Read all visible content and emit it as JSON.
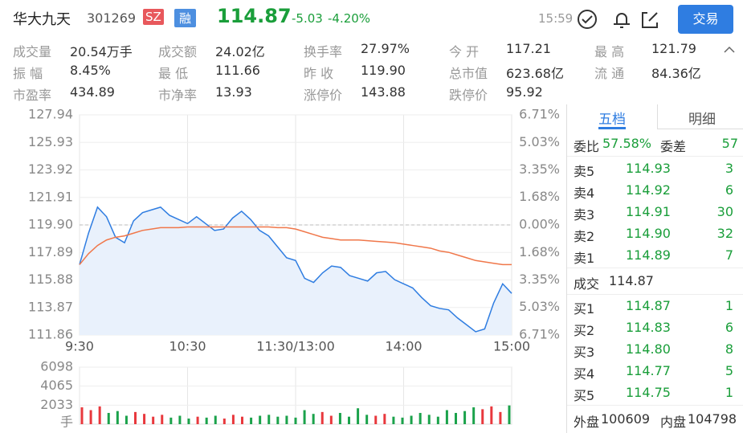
{
  "header": {
    "name": "华大九天",
    "code": "301269",
    "market": "SZ",
    "margin": "融",
    "price": "114.87",
    "change": "-5.03",
    "change_pct": "-4.20%",
    "time": "15:59",
    "trade_button": "交易"
  },
  "stats": [
    [
      {
        "label": "成交量",
        "value": "20.54万手"
      },
      {
        "label": "成交额",
        "value": "24.02亿"
      },
      {
        "label": "换手率",
        "value": "27.97%"
      },
      {
        "label": "今 开",
        "value": "117.21"
      },
      {
        "label": "最 高",
        "value": "121.79"
      }
    ],
    [
      {
        "label": "振 幅",
        "value": "8.45%"
      },
      {
        "label": "最 低",
        "value": "111.66"
      },
      {
        "label": "昨 收",
        "value": "119.90"
      },
      {
        "label": "总市值",
        "value": "623.68亿"
      },
      {
        "label": "流 通",
        "value": "84.36亿"
      }
    ],
    [
      {
        "label": "市盈率",
        "value": "434.89"
      },
      {
        "label": "市净率",
        "value": "13.93"
      },
      {
        "label": "涨停价",
        "value": "143.88"
      },
      {
        "label": "跌停价",
        "value": "95.92"
      }
    ]
  ],
  "chart_data": [
    {
      "type": "line",
      "x_labels": [
        "9:30",
        "10:30",
        "11:30/13:00",
        "14:00",
        "15:00"
      ],
      "ylim": [
        111.86,
        127.94
      ],
      "yticks": [
        111.86,
        113.87,
        115.88,
        117.89,
        {
          "value": 119.9,
          "label": "119.90"
        },
        121.91,
        123.92,
        125.93,
        127.94
      ],
      "y2lim": [
        -6.71,
        6.71
      ],
      "y2ticks": [
        {
          "value": -6.71,
          "label": "6.71%"
        },
        {
          "value": -5.03,
          "label": "5.03%"
        },
        {
          "value": -3.35,
          "label": "3.35%"
        },
        {
          "value": -1.68,
          "label": "1.68%"
        },
        {
          "value": 0,
          "label": "0.00%"
        },
        {
          "value": 1.68,
          "label": "1.68%"
        },
        {
          "value": 3.35,
          "label": "3.35%"
        },
        {
          "value": 5.03,
          "label": "5.03%"
        },
        {
          "value": 6.71,
          "label": "6.71%"
        }
      ],
      "grid": true,
      "series": [
        {
          "color": "#2f7de1",
          "values": [
            117.0,
            119.3,
            121.2,
            120.5,
            119.0,
            118.6,
            120.2,
            120.8,
            121.0,
            121.2,
            120.6,
            120.3,
            120.0,
            120.5,
            120.0,
            119.5,
            119.6,
            120.4,
            120.9,
            120.3,
            119.5,
            119.1,
            118.3,
            117.5,
            117.3,
            116.0,
            115.7,
            116.4,
            116.9,
            116.8,
            116.2,
            116.0,
            115.8,
            116.4,
            116.5,
            115.9,
            115.6,
            115.3,
            114.6,
            114.0,
            113.8,
            113.7,
            113.1,
            112.6,
            112.1,
            112.3,
            114.2,
            115.6,
            114.9
          ]
        },
        {
          "color": "#f0774a",
          "values": [
            117.0,
            117.8,
            118.4,
            118.8,
            119.0,
            119.1,
            119.3,
            119.5,
            119.6,
            119.7,
            119.7,
            119.7,
            119.75,
            119.75,
            119.75,
            119.75,
            119.75,
            119.75,
            119.75,
            119.75,
            119.75,
            119.75,
            119.7,
            119.7,
            119.6,
            119.4,
            119.2,
            119.0,
            118.9,
            118.8,
            118.8,
            118.8,
            118.75,
            118.7,
            118.65,
            118.6,
            118.5,
            118.4,
            118.3,
            118.2,
            118.0,
            117.9,
            117.7,
            117.5,
            117.3,
            117.2,
            117.1,
            117.0,
            117.0
          ]
        }
      ]
    },
    {
      "type": "bar",
      "ylim": [
        0,
        6098
      ],
      "yticks": [
        2033,
        4065,
        6098
      ],
      "y_unit": "手",
      "up_color": "#e8383d",
      "down_color": "#1ba24b",
      "values": [
        1800,
        1500,
        1900,
        1200,
        1400,
        900,
        1300,
        1100,
        800,
        1000,
        700,
        900,
        600,
        800,
        700,
        900,
        600,
        1000,
        800,
        700,
        900,
        1000,
        800,
        900,
        700,
        1500,
        1100,
        1300,
        900,
        1200,
        800,
        1700,
        1000,
        900,
        1100,
        800,
        700,
        900,
        1200,
        1000,
        800,
        1500,
        1200,
        1400,
        1800,
        1600,
        1900,
        1300,
        2000
      ]
    }
  ],
  "book": {
    "tabs": [
      "五档",
      "明细"
    ],
    "ratio_label": "委比",
    "ratio": "57.58%",
    "diff_label": "委差",
    "diff": "57",
    "asks": [
      {
        "label": "卖5",
        "price": "114.93",
        "vol": "3"
      },
      {
        "label": "卖4",
        "price": "114.92",
        "vol": "6"
      },
      {
        "label": "卖3",
        "price": "114.91",
        "vol": "30"
      },
      {
        "label": "卖2",
        "price": "114.90",
        "vol": "32"
      },
      {
        "label": "卖1",
        "price": "114.89",
        "vol": "7"
      }
    ],
    "trade_label": "成交",
    "trade": "114.87",
    "bids": [
      {
        "label": "买1",
        "price": "114.87",
        "vol": "1"
      },
      {
        "label": "买2",
        "price": "114.83",
        "vol": "6"
      },
      {
        "label": "买3",
        "price": "114.80",
        "vol": "8"
      },
      {
        "label": "买4",
        "price": "114.77",
        "vol": "5"
      },
      {
        "label": "买5",
        "price": "114.75",
        "vol": "1"
      }
    ],
    "outer_label": "外盘",
    "outer": "100609",
    "inner_label": "内盘",
    "inner": "104798"
  }
}
